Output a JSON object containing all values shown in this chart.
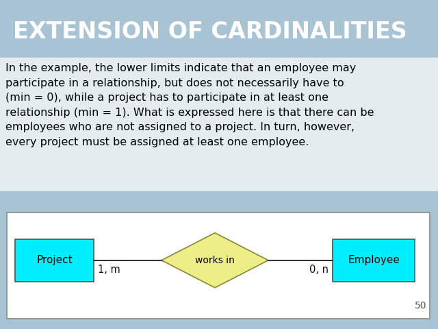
{
  "title": "EXTENSION OF CARDINALITIES",
  "title_color": "#FFFFFF",
  "title_bg_color": "#1878a0",
  "body_text": "In the example, the lower limits indicate that an employee may\nparticipate in a relationship, but does not necessarily have to\n(min = 0), while a project has to participate in at least one\nrelationship (min = 1). What is expressed here is that there can be\nemployees who are not assigned to a project. In turn, however,\nevery project must be assigned at least one employee.",
  "body_text_color": "#000000",
  "bg_color_main": "#a8c4d4",
  "text_area_bg": "#e8f0f4",
  "diagram_bg": "#FFFFFF",
  "project_box_color": "#00EEFF",
  "employee_box_color": "#00EEFF",
  "diamond_color": "#EEEE88",
  "project_label": "Project",
  "employee_label": "Employee",
  "diamond_label": "works in",
  "left_cardinality": "1, m",
  "right_cardinality": "0, n",
  "page_number": "50",
  "title_fontsize": 24,
  "body_fontsize": 11.5,
  "diagram_label_fontsize": 11
}
